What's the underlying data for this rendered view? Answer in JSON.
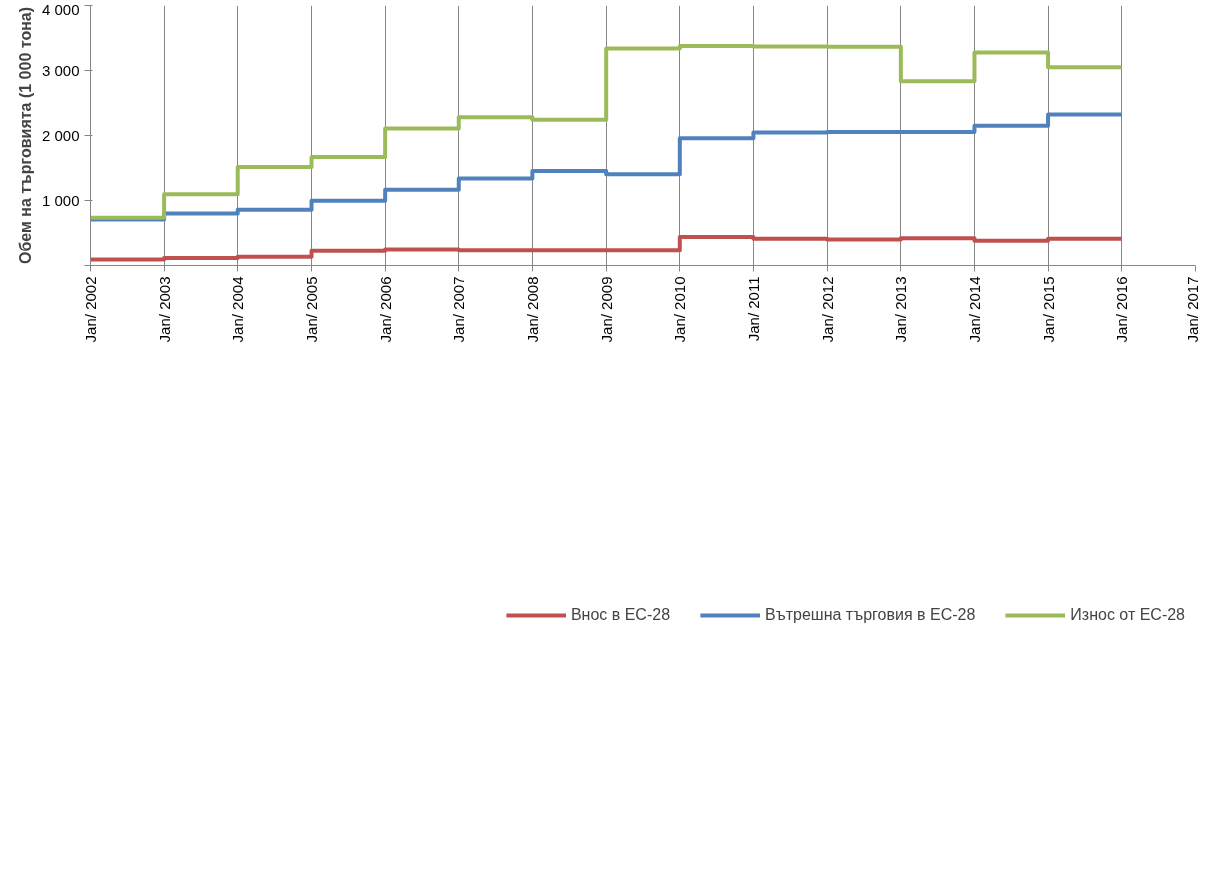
{
  "chart_data": {
    "type": "step",
    "ylabel": "Обем на търговията (1 000 тона)",
    "x": [
      "2002-01",
      "2003-01",
      "2004-01",
      "2005-01",
      "2006-01",
      "2007-01",
      "2008-01",
      "2009-01",
      "2010-01",
      "2011-01",
      "2012-01",
      "2013-01",
      "2014-01",
      "2015-01",
      "2016-01"
    ],
    "series": [
      {
        "name": "Внос в ЕС-28",
        "color": "#c0504d",
        "values": [
          92,
          117,
          136,
          228,
          246,
          234,
          234,
          234,
          437,
          413,
          400,
          419,
          382,
          413,
          413
        ]
      },
      {
        "name": "Вътрешна търговия в ЕС-28",
        "color": "#4f81bd",
        "values": [
          709,
          801,
          856,
          998,
          1165,
          1337,
          1454,
          1405,
          1959,
          2046,
          2052,
          2052,
          2150,
          2323,
          2323
        ]
      },
      {
        "name": "Износ от ЕС-28",
        "color": "#9bbb59",
        "values": [
          733,
          1097,
          1516,
          1670,
          2107,
          2280,
          2243,
          3340,
          3376,
          3370,
          3364,
          2834,
          3278,
          3050,
          3050
        ]
      }
    ],
    "xlim": [
      "2002-01",
      "2017-01"
    ],
    "xticks": [
      {
        "value": "2002-01",
        "label": "Jan/ 2002"
      },
      {
        "value": "2003-01",
        "label": "Jan/ 2003"
      },
      {
        "value": "2004-01",
        "label": "Jan/ 2004"
      },
      {
        "value": "2005-01",
        "label": "Jan/ 2005"
      },
      {
        "value": "2006-01",
        "label": "Jan/ 2006"
      },
      {
        "value": "2007-01",
        "label": "Jan/ 2007"
      },
      {
        "value": "2008-01",
        "label": "Jan/ 2008"
      },
      {
        "value": "2009-01",
        "label": "Jan/ 2009"
      },
      {
        "value": "2010-01",
        "label": "Jan/ 2010"
      },
      {
        "value": "2011-01",
        "label": "Jan/ 2011"
      },
      {
        "value": "2012-01",
        "label": "Jan/ 2012"
      },
      {
        "value": "2013-01",
        "label": "Jan/ 2013"
      },
      {
        "value": "2014-01",
        "label": "Jan/ 2014"
      },
      {
        "value": "2015-01",
        "label": "Jan/ 2015"
      },
      {
        "value": "2016-01",
        "label": "Jan/ 2016"
      },
      {
        "value": "2017-01",
        "label": "Jan/ 2017"
      }
    ],
    "ylim": [
      0,
      4000
    ],
    "yticks": [
      {
        "value": 0,
        "label": null
      },
      {
        "value": 1000,
        "label": "1 000"
      },
      {
        "value": 2000,
        "label": "2 000"
      },
      {
        "value": 3000,
        "label": "3 000"
      },
      {
        "value": 4000,
        "label": "4 000"
      }
    ],
    "grid": "x",
    "legend": "bottom",
    "line_style": "solid",
    "marker": "none"
  }
}
